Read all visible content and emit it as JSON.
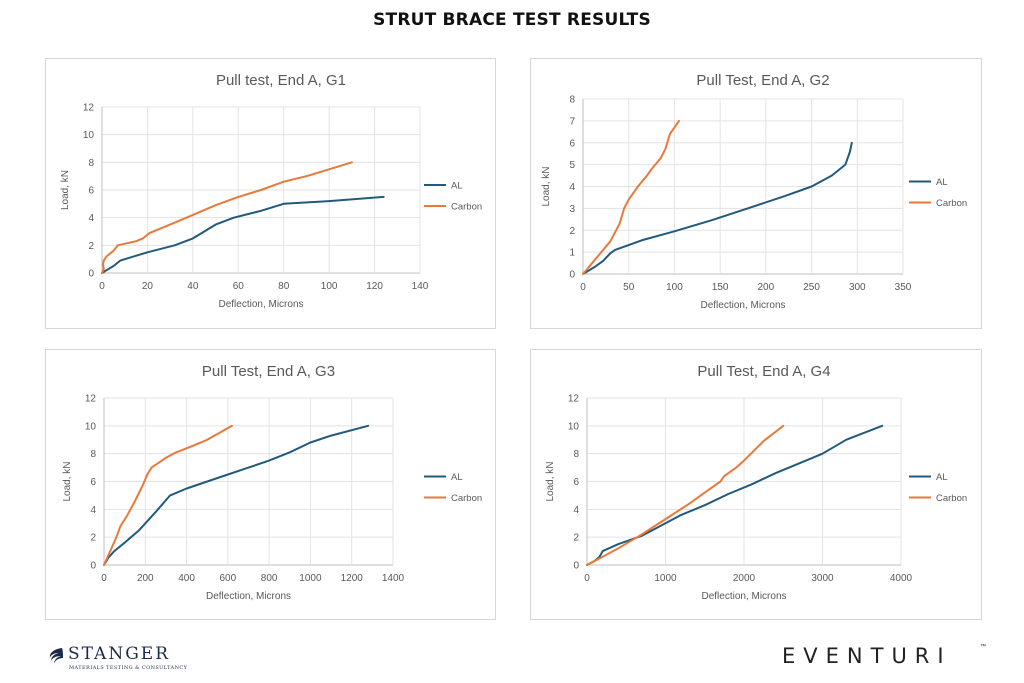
{
  "page": {
    "title": "STRUT BRACE TEST RESULTS"
  },
  "logos": {
    "left_name": "STANGER",
    "left_tagline": "MATERIALS TESTING & CONSULTANCY",
    "right_name": "EVENTURI",
    "right_tm": "™"
  },
  "colors": {
    "al": "#215a7c",
    "carbon": "#e8793a"
  },
  "chart_data": [
    {
      "type": "line",
      "title": "Pull test, End A, G1",
      "xlabel": "Deflection, Microns",
      "ylabel": "Load, kN",
      "xlim": [
        0,
        140
      ],
      "ylim": [
        0,
        12
      ],
      "xticks": [
        0,
        20,
        40,
        60,
        80,
        100,
        120,
        140
      ],
      "yticks": [
        0,
        2,
        4,
        6,
        8,
        10,
        12
      ],
      "legend": "right",
      "series": [
        {
          "name": "AL",
          "color": "#215a7c",
          "x": [
            0,
            2,
            5,
            8,
            10,
            20,
            32,
            40,
            50,
            58,
            70,
            80,
            100,
            124
          ],
          "y": [
            0,
            0.2,
            0.5,
            0.9,
            1.0,
            1.5,
            2.0,
            2.5,
            3.5,
            4.0,
            4.5,
            5.0,
            5.2,
            5.5
          ]
        },
        {
          "name": "Carbon",
          "color": "#e8793a",
          "x": [
            0,
            0.8,
            0.4,
            0.8,
            2,
            5,
            7,
            15,
            18,
            21,
            30,
            40,
            50,
            60,
            70,
            80,
            90,
            100,
            110
          ],
          "y": [
            0,
            0.3,
            0.6,
            0.9,
            1.2,
            1.6,
            2.0,
            2.3,
            2.5,
            2.9,
            3.5,
            4.2,
            4.9,
            5.5,
            6.0,
            6.6,
            7.0,
            7.5,
            8.0
          ]
        }
      ]
    },
    {
      "type": "line",
      "title": "Pull Test, End A, G2",
      "xlabel": "Deflection, Microns",
      "ylabel": "Load, kN",
      "xlim": [
        0,
        350
      ],
      "ylim": [
        0,
        8
      ],
      "xticks": [
        0,
        50,
        100,
        150,
        200,
        250,
        300,
        350
      ],
      "yticks": [
        0,
        1,
        2,
        3,
        4,
        5,
        6,
        7,
        8
      ],
      "legend": "right",
      "series": [
        {
          "name": "AL",
          "color": "#215a7c",
          "x": [
            0,
            12,
            22,
            30,
            35,
            45,
            65,
            100,
            140,
            180,
            220,
            250,
            272,
            287,
            292,
            294
          ],
          "y": [
            0,
            0.3,
            0.6,
            0.95,
            1.1,
            1.25,
            1.55,
            1.95,
            2.45,
            3.0,
            3.55,
            4.0,
            4.5,
            5.0,
            5.6,
            6.0
          ]
        },
        {
          "name": "Carbon",
          "color": "#e8793a",
          "x": [
            0,
            10,
            20,
            30,
            40,
            45,
            50,
            60,
            70,
            75,
            85,
            90,
            95,
            105
          ],
          "y": [
            0,
            0.5,
            1.0,
            1.5,
            2.3,
            3.0,
            3.4,
            4.0,
            4.5,
            4.8,
            5.3,
            5.7,
            6.4,
            7.0
          ]
        }
      ]
    },
    {
      "type": "line",
      "title": "Pull Test, End A, G3",
      "xlabel": "Deflection, Microns",
      "ylabel": "Load, kN",
      "xlim": [
        0,
        1400
      ],
      "ylim": [
        0,
        12
      ],
      "xticks": [
        0,
        200,
        400,
        600,
        800,
        1000,
        1200,
        1400
      ],
      "yticks": [
        0,
        2,
        4,
        6,
        8,
        10,
        12
      ],
      "legend": "right",
      "series": [
        {
          "name": "AL",
          "color": "#215a7c",
          "x": [
            0,
            20,
            50,
            100,
            170,
            250,
            320,
            400,
            500,
            600,
            700,
            800,
            900,
            1000,
            1100,
            1280
          ],
          "y": [
            0,
            0.5,
            1.0,
            1.6,
            2.5,
            3.8,
            5.0,
            5.5,
            6.0,
            6.5,
            7.0,
            7.5,
            8.1,
            8.8,
            9.3,
            10.0
          ]
        },
        {
          "name": "Carbon",
          "color": "#e8793a",
          "x": [
            0,
            30,
            60,
            80,
            110,
            150,
            190,
            210,
            230,
            260,
            300,
            350,
            420,
            500,
            560,
            620
          ],
          "y": [
            0,
            1.0,
            2.0,
            2.8,
            3.5,
            4.6,
            5.8,
            6.5,
            7.0,
            7.3,
            7.7,
            8.1,
            8.5,
            9.0,
            9.5,
            10.0
          ]
        }
      ]
    },
    {
      "type": "line",
      "title": "Pull Test, End A, G4",
      "xlabel": "Deflection, Microns",
      "ylabel": "Load, kN",
      "xlim": [
        0,
        4000
      ],
      "ylim": [
        0,
        12
      ],
      "xticks": [
        0,
        1000,
        2000,
        3000,
        4000
      ],
      "yticks": [
        0,
        2,
        4,
        6,
        8,
        10,
        12
      ],
      "legend": "right",
      "series": [
        {
          "name": "AL",
          "color": "#215a7c",
          "x": [
            0,
            100,
            160,
            200,
            400,
            700,
            1000,
            1200,
            1500,
            1800,
            2100,
            2400,
            2700,
            3000,
            3300,
            3760
          ],
          "y": [
            0,
            0.3,
            0.6,
            1.0,
            1.5,
            2.1,
            3.0,
            3.6,
            4.3,
            5.1,
            5.8,
            6.6,
            7.3,
            8.0,
            9.0,
            10.0
          ]
        },
        {
          "name": "Carbon",
          "color": "#e8793a",
          "x": [
            0,
            200,
            400,
            700,
            1000,
            1300,
            1500,
            1700,
            1750,
            1900,
            2000,
            2250,
            2500
          ],
          "y": [
            0,
            0.6,
            1.2,
            2.2,
            3.3,
            4.4,
            5.2,
            6.0,
            6.4,
            7.0,
            7.5,
            8.9,
            10.0
          ]
        }
      ]
    }
  ]
}
